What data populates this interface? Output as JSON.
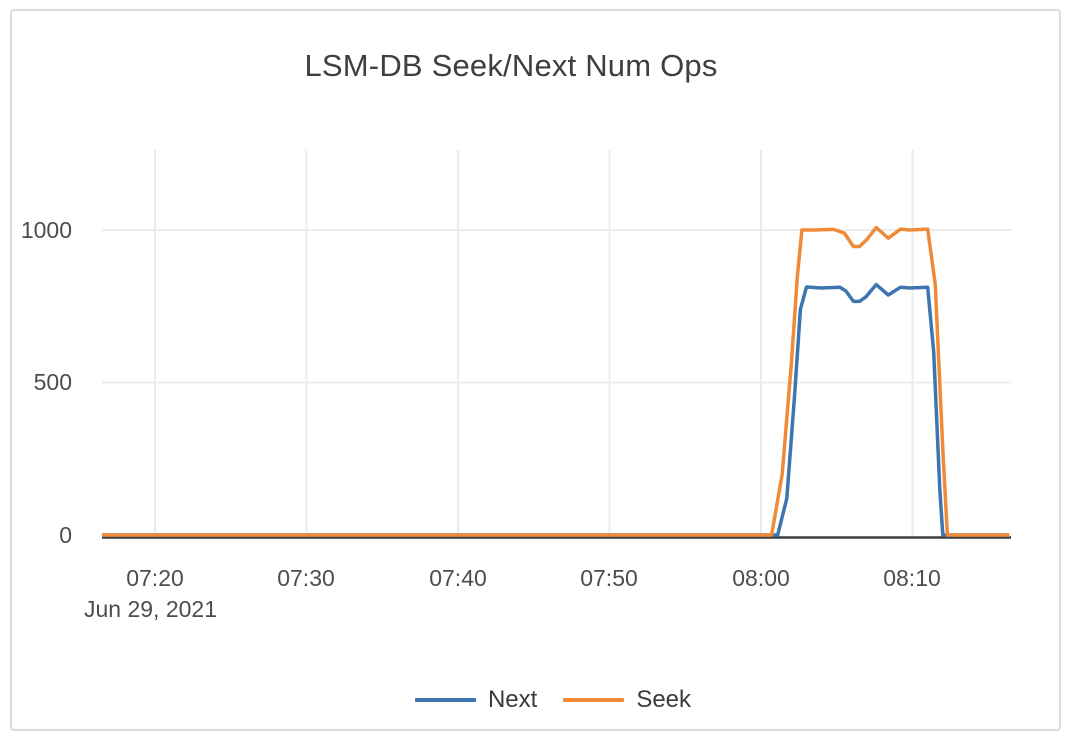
{
  "chart_data": {
    "type": "line",
    "title": "LSM-DB Seek/Next Num Ops",
    "x_axis": {
      "date_label": "Jun 29, 2021",
      "tick_labels": [
        "07:20",
        "07:30",
        "07:40",
        "07:50",
        "08:00",
        "08:10"
      ],
      "tick_minutes": [
        440,
        450,
        460,
        470,
        480,
        490
      ],
      "domain_minutes": [
        436.5,
        496.5
      ]
    },
    "y_axis": {
      "tick_labels": [
        "0",
        "500",
        "1000"
      ],
      "tick_values": [
        0,
        500,
        1000
      ],
      "range": [
        0,
        1265
      ],
      "grid": true
    },
    "legend_position": "bottom-center",
    "series": [
      {
        "name": "Next",
        "color": "#3c75b0",
        "points": [
          [
            436.5,
            0
          ],
          [
            460,
            0
          ],
          [
            475,
            0
          ],
          [
            481.1,
            0
          ],
          [
            481.7,
            120
          ],
          [
            482.2,
            450
          ],
          [
            482.6,
            740
          ],
          [
            483.0,
            813
          ],
          [
            484.0,
            810
          ],
          [
            485.2,
            812
          ],
          [
            485.6,
            800
          ],
          [
            486.1,
            766
          ],
          [
            486.5,
            766
          ],
          [
            486.9,
            780
          ],
          [
            487.6,
            821
          ],
          [
            488.4,
            787
          ],
          [
            489.2,
            812
          ],
          [
            489.8,
            810
          ],
          [
            491.0,
            812
          ],
          [
            491.4,
            600
          ],
          [
            491.8,
            150
          ],
          [
            492.0,
            0
          ],
          [
            494,
            0
          ],
          [
            496.4,
            0
          ]
        ]
      },
      {
        "name": "Seek",
        "color": "#ef8a39",
        "points": [
          [
            436.5,
            0
          ],
          [
            460,
            0
          ],
          [
            475,
            0
          ],
          [
            480.7,
            0
          ],
          [
            481.4,
            200
          ],
          [
            482.0,
            560
          ],
          [
            482.4,
            850
          ],
          [
            482.7,
            1000
          ],
          [
            483.5,
            1000
          ],
          [
            484.8,
            1002
          ],
          [
            485.5,
            990
          ],
          [
            486.1,
            946
          ],
          [
            486.5,
            946
          ],
          [
            487.0,
            970
          ],
          [
            487.6,
            1008
          ],
          [
            488.4,
            973
          ],
          [
            489.2,
            1003
          ],
          [
            489.8,
            1000
          ],
          [
            491.0,
            1003
          ],
          [
            491.5,
            820
          ],
          [
            492.0,
            280
          ],
          [
            492.3,
            0
          ],
          [
            494,
            0
          ],
          [
            496.4,
            0
          ]
        ]
      }
    ]
  },
  "colors": {
    "grid": "#ececec",
    "zero_line": "#3f3f3f",
    "card_border": "#dcdcdc",
    "tick_text": "#4d4d4d",
    "title_text": "#3f3f3f"
  }
}
